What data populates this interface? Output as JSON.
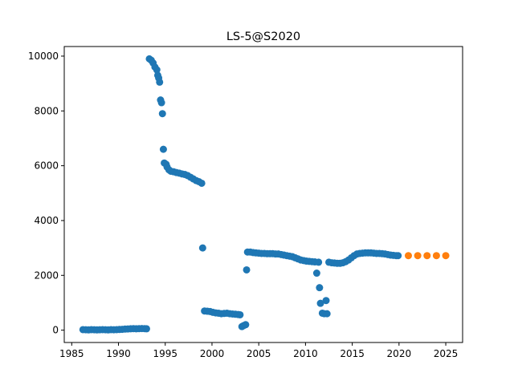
{
  "chart_data": {
    "type": "scatter",
    "title": "LS-5@S2020",
    "xlabel": "",
    "ylabel": "",
    "xlim": [
      1984.2,
      2026.8
    ],
    "ylim": [
      -450,
      10350
    ],
    "xticks": [
      1985,
      1990,
      1995,
      2000,
      2005,
      2010,
      2015,
      2020,
      2025
    ],
    "yticks": [
      0,
      2000,
      4000,
      6000,
      8000,
      10000
    ],
    "grid": false,
    "legend": "none",
    "series": [
      {
        "color": "#1f77b4",
        "points": [
          [
            1986.2,
            20
          ],
          [
            1986.5,
            15
          ],
          [
            1986.8,
            10
          ],
          [
            1987.1,
            20
          ],
          [
            1987.4,
            15
          ],
          [
            1987.7,
            10
          ],
          [
            1988.0,
            15
          ],
          [
            1988.3,
            20
          ],
          [
            1988.6,
            15
          ],
          [
            1988.9,
            10
          ],
          [
            1989.2,
            20
          ],
          [
            1989.5,
            15
          ],
          [
            1989.8,
            20
          ],
          [
            1990.1,
            25
          ],
          [
            1990.4,
            30
          ],
          [
            1990.7,
            40
          ],
          [
            1991.0,
            45
          ],
          [
            1991.3,
            50
          ],
          [
            1991.6,
            55
          ],
          [
            1991.9,
            50
          ],
          [
            1992.2,
            55
          ],
          [
            1992.5,
            60
          ],
          [
            1992.8,
            55
          ],
          [
            1993.0,
            50
          ],
          [
            1993.3,
            9900
          ],
          [
            1993.5,
            9850
          ],
          [
            1993.7,
            9750
          ],
          [
            1993.9,
            9600
          ],
          [
            1994.1,
            9500
          ],
          [
            1994.2,
            9300
          ],
          [
            1994.3,
            9200
          ],
          [
            1994.4,
            9050
          ],
          [
            1994.5,
            8400
          ],
          [
            1994.6,
            8300
          ],
          [
            1994.7,
            7900
          ],
          [
            1994.8,
            6600
          ],
          [
            1994.9,
            6100
          ],
          [
            1995.1,
            6050
          ],
          [
            1995.2,
            5950
          ],
          [
            1995.4,
            5850
          ],
          [
            1995.6,
            5800
          ],
          [
            1995.9,
            5780
          ],
          [
            1996.2,
            5750
          ],
          [
            1996.5,
            5730
          ],
          [
            1996.8,
            5700
          ],
          [
            1997.1,
            5680
          ],
          [
            1997.4,
            5640
          ],
          [
            1997.7,
            5580
          ],
          [
            1998.0,
            5520
          ],
          [
            1998.3,
            5460
          ],
          [
            1998.6,
            5420
          ],
          [
            1998.9,
            5360
          ],
          [
            1999.0,
            3000
          ],
          [
            1999.2,
            700
          ],
          [
            1999.5,
            690
          ],
          [
            1999.8,
            680
          ],
          [
            2000.1,
            650
          ],
          [
            2000.4,
            630
          ],
          [
            2000.7,
            620
          ],
          [
            2001.0,
            600
          ],
          [
            2001.3,
            610
          ],
          [
            2001.6,
            620
          ],
          [
            2001.9,
            600
          ],
          [
            2002.2,
            590
          ],
          [
            2002.5,
            580
          ],
          [
            2002.8,
            570
          ],
          [
            2003.0,
            560
          ],
          [
            2003.2,
            130
          ],
          [
            2003.4,
            170
          ],
          [
            2003.6,
            200
          ],
          [
            2003.7,
            2200
          ],
          [
            2003.8,
            2850
          ],
          [
            2004.1,
            2850
          ],
          [
            2004.4,
            2830
          ],
          [
            2004.7,
            2820
          ],
          [
            2005.0,
            2810
          ],
          [
            2005.3,
            2800
          ],
          [
            2005.6,
            2800
          ],
          [
            2005.9,
            2790
          ],
          [
            2006.2,
            2790
          ],
          [
            2006.5,
            2790
          ],
          [
            2006.8,
            2780
          ],
          [
            2007.1,
            2780
          ],
          [
            2007.4,
            2760
          ],
          [
            2007.7,
            2740
          ],
          [
            2008.0,
            2720
          ],
          [
            2008.3,
            2700
          ],
          [
            2008.6,
            2680
          ],
          [
            2008.9,
            2640
          ],
          [
            2009.2,
            2600
          ],
          [
            2009.5,
            2560
          ],
          [
            2009.8,
            2540
          ],
          [
            2010.1,
            2520
          ],
          [
            2010.4,
            2510
          ],
          [
            2010.7,
            2500
          ],
          [
            2011.0,
            2490
          ],
          [
            2011.2,
            2080
          ],
          [
            2011.4,
            2480
          ],
          [
            2011.5,
            1550
          ],
          [
            2011.6,
            980
          ],
          [
            2011.8,
            620
          ],
          [
            2012.0,
            600
          ],
          [
            2012.2,
            1080
          ],
          [
            2012.3,
            600
          ],
          [
            2012.5,
            2480
          ],
          [
            2012.8,
            2460
          ],
          [
            2013.1,
            2450
          ],
          [
            2013.4,
            2440
          ],
          [
            2013.7,
            2440
          ],
          [
            2014.0,
            2460
          ],
          [
            2014.3,
            2500
          ],
          [
            2014.6,
            2560
          ],
          [
            2014.9,
            2640
          ],
          [
            2015.2,
            2720
          ],
          [
            2015.5,
            2780
          ],
          [
            2015.8,
            2800
          ],
          [
            2016.1,
            2810
          ],
          [
            2016.4,
            2820
          ],
          [
            2016.7,
            2820
          ],
          [
            2017.0,
            2820
          ],
          [
            2017.3,
            2810
          ],
          [
            2017.6,
            2800
          ],
          [
            2017.9,
            2800
          ],
          [
            2018.2,
            2790
          ],
          [
            2018.5,
            2780
          ],
          [
            2018.8,
            2760
          ],
          [
            2019.1,
            2740
          ],
          [
            2019.4,
            2730
          ],
          [
            2019.7,
            2720
          ],
          [
            2019.9,
            2720
          ]
        ]
      },
      {
        "color": "#ff7f0e",
        "points": [
          [
            2021,
            2720
          ],
          [
            2022,
            2720
          ],
          [
            2023,
            2720
          ],
          [
            2024,
            2720
          ],
          [
            2025,
            2720
          ]
        ]
      }
    ]
  }
}
